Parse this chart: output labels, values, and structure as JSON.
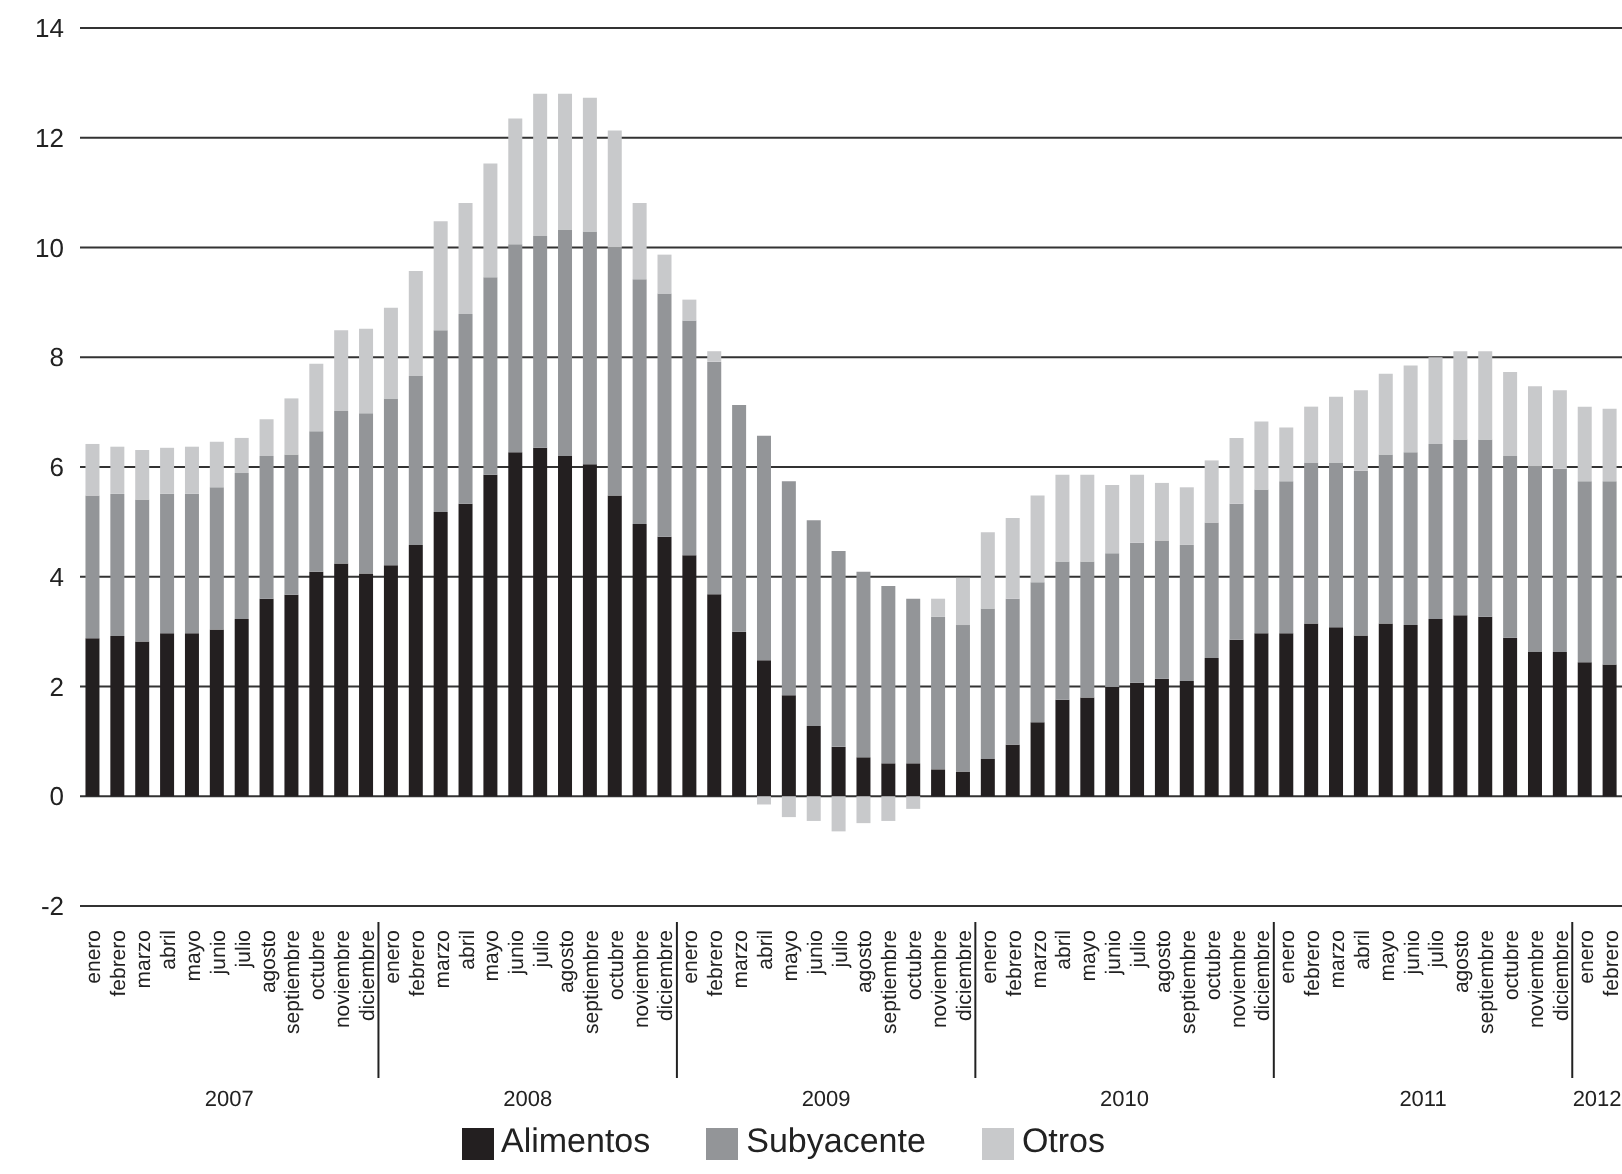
{
  "chart_data": {
    "type": "bar",
    "stacked": true,
    "categories": [
      "enero",
      "febrero",
      "marzo",
      "abril",
      "mayo",
      "junio",
      "julio",
      "agosto",
      "septiembre",
      "octubre",
      "noviembre",
      "diciembre",
      "enero",
      "febrero",
      "marzo",
      "abril",
      "mayo",
      "junio",
      "julio",
      "agosto",
      "septiembre",
      "octubre",
      "noviembre",
      "diciembre",
      "enero",
      "febrero",
      "marzo",
      "abril",
      "mayo",
      "junio",
      "julio",
      "agosto",
      "septiembre",
      "octubre",
      "noviembre",
      "diciembre",
      "enero",
      "febrero",
      "marzo",
      "abril",
      "mayo",
      "junio",
      "julio",
      "agosto",
      "septiembre",
      "octubre",
      "noviembre",
      "diciembre",
      "enero",
      "febrero",
      "marzo",
      "abril",
      "mayo",
      "junio",
      "julio",
      "agosto",
      "septiembre",
      "octubre",
      "noviembre",
      "diciembre",
      "enero",
      "febrero"
    ],
    "series": [
      {
        "name": "Alimentos",
        "color": "#231f20",
        "values": [
          2.88,
          2.92,
          2.82,
          2.97,
          2.97,
          3.04,
          3.23,
          3.6,
          3.67,
          4.09,
          4.24,
          4.06,
          4.21,
          4.58,
          5.18,
          5.33,
          5.86,
          6.27,
          6.35,
          6.2,
          6.05,
          5.48,
          4.96,
          4.73,
          4.39,
          3.68,
          3.0,
          2.48,
          1.84,
          1.28,
          0.9,
          0.71,
          0.6,
          0.6,
          0.49,
          0.45,
          0.68,
          0.94,
          1.35,
          1.76,
          1.8,
          1.99,
          2.07,
          2.14,
          2.1,
          2.52,
          2.85,
          2.97,
          2.97,
          3.15,
          3.08,
          2.93,
          3.15,
          3.12,
          3.23,
          3.3,
          3.27,
          2.89,
          2.63,
          2.63,
          2.44,
          2.4
        ]
      },
      {
        "name": "Subyacente",
        "color": "#939598",
        "values": [
          2.6,
          2.59,
          2.59,
          2.54,
          2.54,
          2.59,
          2.66,
          2.6,
          2.56,
          2.56,
          2.78,
          2.92,
          3.04,
          3.08,
          3.31,
          3.46,
          3.6,
          3.79,
          3.86,
          4.13,
          4.24,
          4.52,
          4.46,
          4.43,
          4.28,
          4.24,
          4.13,
          4.09,
          3.9,
          3.75,
          3.57,
          3.38,
          3.23,
          3.0,
          2.78,
          2.67,
          2.74,
          2.66,
          2.55,
          2.52,
          2.48,
          2.44,
          2.55,
          2.52,
          2.48,
          2.47,
          2.48,
          2.62,
          2.77,
          2.93,
          3.0,
          3.0,
          3.08,
          3.15,
          3.19,
          3.2,
          3.23,
          3.31,
          3.38,
          3.34,
          3.3,
          3.34
        ]
      },
      {
        "name": "Otros",
        "color": "#c8c9cb",
        "values": [
          0.94,
          0.86,
          0.9,
          0.84,
          0.86,
          0.83,
          0.64,
          0.67,
          1.02,
          1.23,
          1.47,
          1.54,
          1.65,
          1.91,
          1.99,
          2.02,
          2.07,
          2.29,
          2.59,
          2.47,
          2.44,
          2.13,
          1.39,
          0.71,
          0.38,
          0.19,
          null,
          -0.15,
          -0.38,
          -0.45,
          -0.64,
          -0.49,
          -0.45,
          -0.23,
          0.33,
          0.86,
          1.39,
          1.47,
          1.58,
          1.58,
          1.58,
          1.24,
          1.24,
          1.05,
          1.05,
          1.13,
          1.2,
          1.24,
          0.98,
          1.02,
          1.2,
          1.47,
          1.47,
          1.58,
          1.58,
          1.61,
          1.61,
          1.53,
          1.46,
          1.43,
          1.36,
          1.32
        ]
      }
    ],
    "ylim": [
      -2,
      14
    ],
    "yticks": [
      -2,
      0,
      2,
      4,
      6,
      8,
      10,
      12,
      14
    ],
    "annotations": [
      "2007",
      "2008",
      "2009",
      "2010",
      "2011",
      "2012"
    ],
    "grid": "y",
    "legend": "bottom"
  }
}
